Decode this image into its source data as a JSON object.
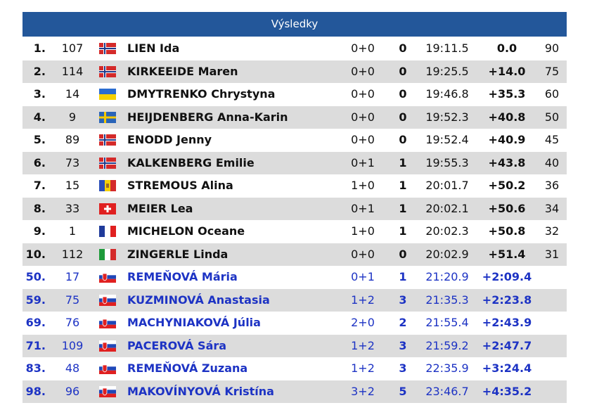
{
  "header": {
    "title": "Výsledky"
  },
  "table": {
    "rows": [
      [
        "1.",
        107,
        "LIEN Ida",
        "0+0",
        0,
        "19:11.5",
        "0.0",
        90
      ],
      [
        "2.",
        114,
        "KIRKEEIDE Maren",
        "0+0",
        0,
        "19:25.5",
        "+14.0",
        75
      ],
      [
        "3.",
        14,
        "DMYTRENKO Chrystyna",
        "0+0",
        0,
        "19:46.8",
        "+35.3",
        60
      ],
      [
        "4.",
        9,
        "HEIJDENBERG Anna-Karin",
        "0+0",
        0,
        "19:52.3",
        "+40.8",
        50
      ],
      [
        "5.",
        89,
        "ENODD Jenny",
        "0+0",
        0,
        "19:52.4",
        "+40.9",
        45
      ],
      [
        "6.",
        73,
        "KALKENBERG Emilie",
        "0+1",
        1,
        "19:55.3",
        "+43.8",
        40
      ],
      [
        "7.",
        15,
        "STREMOUS Alina",
        "1+0",
        1,
        "20:01.7",
        "+50.2",
        36
      ],
      [
        "8.",
        33,
        "MEIER Lea",
        "0+1",
        1,
        "20:02.1",
        "+50.6",
        34
      ],
      [
        "9.",
        1,
        "MICHELON Oceane",
        "1+0",
        1,
        "20:02.3",
        "+50.8",
        32
      ],
      [
        "10.",
        112,
        "ZINGERLE Linda",
        "0+0",
        0,
        "20:02.9",
        "+51.4",
        31
      ],
      [
        "50.",
        17,
        "REMEŇOVÁ Mária",
        "0+1",
        1,
        "21:20.9",
        "+2:09.4"
      ],
      [
        "59.",
        75,
        "KUZMINOVÁ Anastasia",
        "1+2",
        3,
        "21:35.3",
        "+2:23.8"
      ],
      [
        "69.",
        76,
        "MACHYNIAKOVÁ Júlia",
        "2+0",
        2,
        "21:55.4",
        "+2:43.9"
      ],
      [
        "71.",
        109,
        "PACEROVÁ Sára",
        "1+2",
        3,
        "21:59.2",
        "+2:47.7"
      ],
      [
        "83.",
        48,
        "REMEŇOVÁ Zuzana",
        "1+2",
        3,
        "22:35.9",
        "+3:24.4"
      ],
      [
        "98.",
        96,
        "MAKOVÍNYOVÁ Kristína",
        "3+2",
        5,
        "23:46.7",
        "+4:35.2"
      ]
    ]
  }
}
